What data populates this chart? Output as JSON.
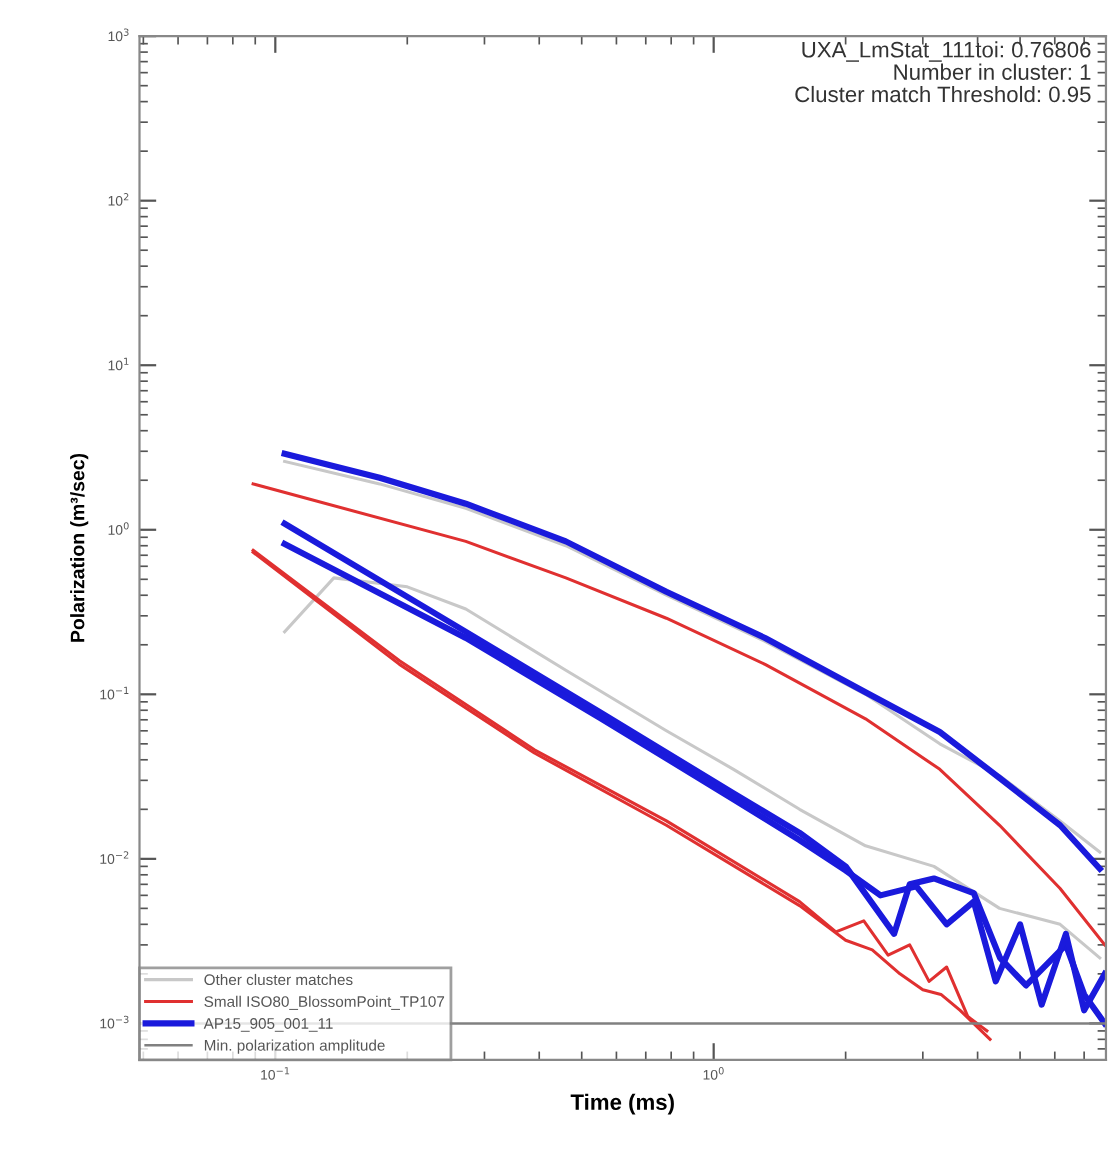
{
  "chart_data": {
    "type": "line",
    "xlabel": "Time (ms)",
    "ylabel": "Polarization (m³/sec)",
    "log": "xy",
    "xlim": [
      0.049,
      7.85
    ],
    "ylim": [
      0.0006,
      1000
    ],
    "xticks": [
      {
        "value": 0.1,
        "label": "10$^{−1}$"
      },
      {
        "value": 1,
        "label": "10$^{0}$"
      }
    ],
    "yticks": [
      {
        "value": 0.001,
        "label": "10$^{−3}$"
      },
      {
        "value": 0.01,
        "label": "10$^{−2}$"
      },
      {
        "value": 0.1,
        "label": "10$^{−1}$"
      },
      {
        "value": 1,
        "label": "10$^{0}$"
      },
      {
        "value": 10,
        "label": "10$^{1}$"
      },
      {
        "value": 100,
        "label": "10$^{2}$"
      },
      {
        "value": 1000,
        "label": "10$^{3}$"
      }
    ],
    "grid": false,
    "legend": "bottom left",
    "marker": "none",
    "line_style": "solid",
    "annotations": [
      "UXA_LmStat_111toi: 0.76806",
      "Number in cluster: 1",
      "Cluster match Threshold: 0.95"
    ],
    "ref_lines": [
      {
        "axis": "y",
        "value": 0.001,
        "label": "Min. polarization amplitude",
        "color": "#808080"
      }
    ],
    "series": [
      {
        "name": "Other cluster matches",
        "color": "#c8c8c8",
        "x": [
          0.105,
          0.173,
          0.272,
          0.46,
          0.78,
          1.31,
          2.22,
          3.28,
          4.49,
          6.17,
          7.6
        ],
        "values": [
          2.6,
          1.9,
          1.35,
          0.8,
          0.4,
          0.21,
          0.1,
          0.05,
          0.032,
          0.017,
          0.011
        ]
      },
      {
        "color": "#c8c8c8",
        "x": [
          0.105,
          0.136,
          0.2,
          0.272,
          0.46,
          0.78,
          1.11,
          1.57,
          2.22,
          3.18,
          4.49,
          6.17,
          7.6
        ],
        "values": [
          0.24,
          0.51,
          0.45,
          0.33,
          0.14,
          0.06,
          0.035,
          0.02,
          0.012,
          0.009,
          0.005,
          0.004,
          0.0025
        ]
      },
      {
        "name": "Small ISO80_BlossomPoint_TP107",
        "color": "#e03030",
        "x": [
          0.089,
          0.272,
          0.46,
          0.78,
          1.31,
          2.22,
          3.28,
          4.49,
          6.17,
          7.8
        ],
        "values": [
          1.9,
          0.85,
          0.51,
          0.29,
          0.152,
          0.071,
          0.035,
          0.016,
          0.0066,
          0.003
        ]
      },
      {
        "color": "#e03030",
        "x": [
          0.089,
          0.192,
          0.39,
          0.78,
          1.57,
          2.0,
          2.3,
          2.66,
          3.0,
          3.3,
          3.65,
          4.27
        ],
        "values": [
          0.73,
          0.152,
          0.044,
          0.016,
          0.0052,
          0.0032,
          0.0028,
          0.002,
          0.0016,
          0.0015,
          0.0012,
          0.0008
        ]
      },
      {
        "color": "#e03030",
        "x": [
          0.089,
          0.192,
          0.39,
          0.78,
          1.57,
          1.9,
          2.2,
          2.5,
          2.8,
          3.1,
          3.4,
          3.8,
          4.2
        ],
        "values": [
          0.75,
          0.16,
          0.046,
          0.017,
          0.0055,
          0.0036,
          0.0042,
          0.0026,
          0.003,
          0.0018,
          0.0022,
          0.0011,
          0.0009
        ]
      },
      {
        "name": "AP15_905_001_11",
        "color": "#1a1adc",
        "x": [
          0.105,
          0.173,
          0.272,
          0.46,
          0.78,
          1.31,
          2.22,
          3.28,
          4.49,
          6.17,
          7.6
        ],
        "values": [
          2.9,
          2.07,
          1.44,
          0.85,
          0.42,
          0.22,
          0.103,
          0.059,
          0.031,
          0.016,
          0.0087
        ]
      },
      {
        "color": "#1a1adc",
        "x": [
          0.105,
          0.272,
          0.55,
          1.11,
          1.57,
          2.0,
          2.58,
          2.8,
          3.18,
          3.92,
          4.5,
          5.16,
          6.36,
          7.0,
          7.8
        ],
        "values": [
          1.09,
          0.24,
          0.078,
          0.025,
          0.0144,
          0.009,
          0.0035,
          0.007,
          0.0076,
          0.0062,
          0.0025,
          0.0017,
          0.003,
          0.0015,
          0.001
        ]
      },
      {
        "color": "#1a1adc",
        "x": [
          0.105,
          0.272,
          0.55,
          1.11,
          1.57,
          2.0,
          2.4,
          2.9,
          3.4,
          3.92,
          4.4,
          5.0,
          5.6,
          6.36,
          7.0,
          7.8
        ],
        "values": [
          0.82,
          0.22,
          0.072,
          0.023,
          0.013,
          0.0085,
          0.006,
          0.0068,
          0.004,
          0.0055,
          0.0018,
          0.004,
          0.0013,
          0.0035,
          0.0012,
          0.002
        ]
      }
    ]
  }
}
